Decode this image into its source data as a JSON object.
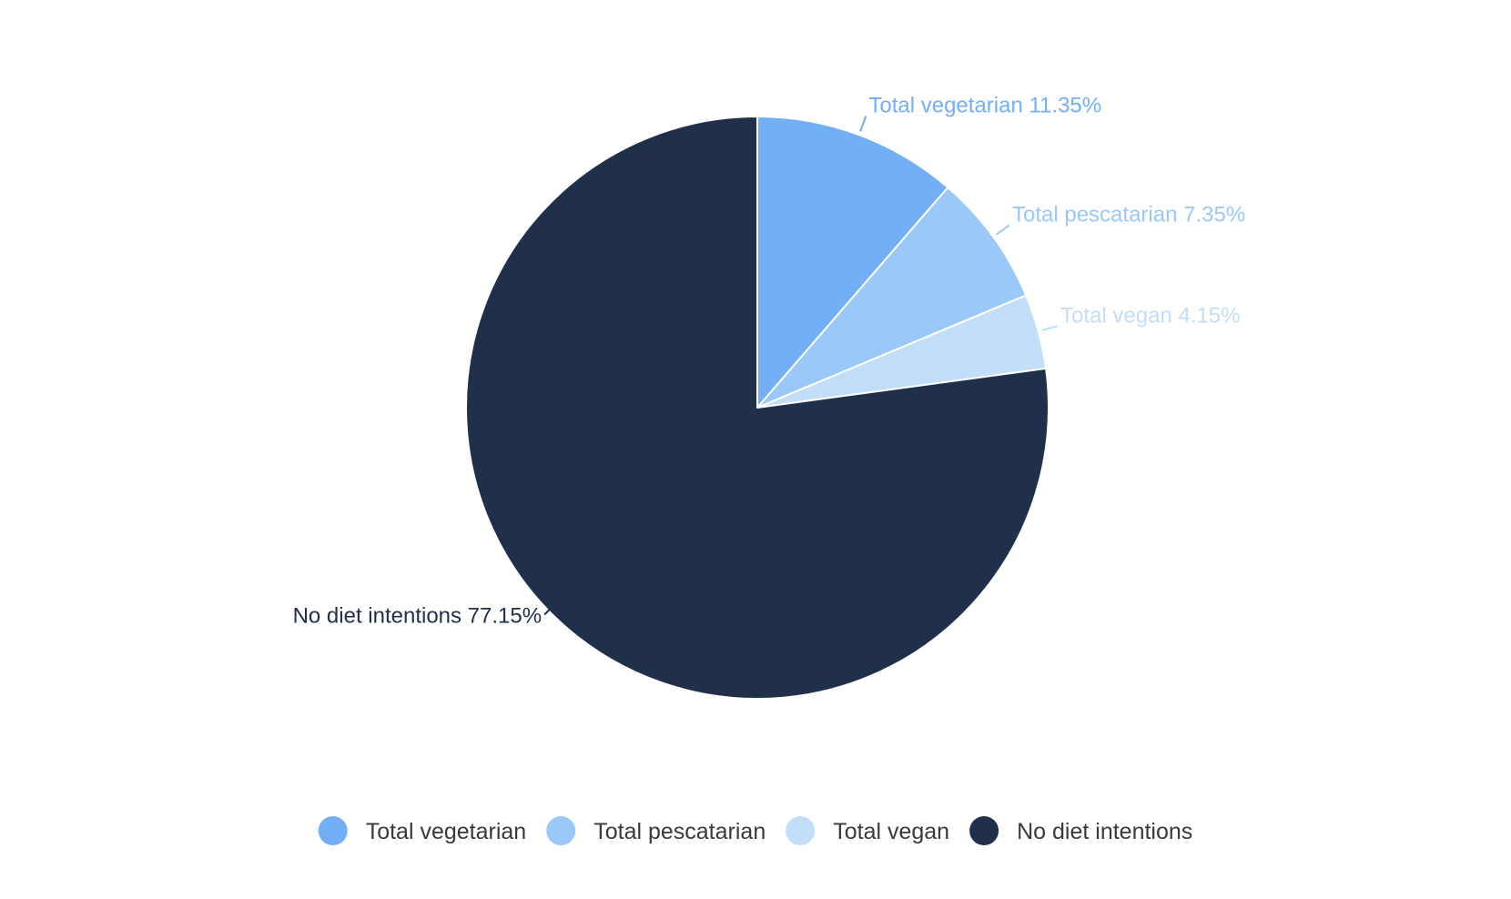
{
  "chart_data": {
    "type": "pie",
    "slices": [
      {
        "name": "Total vegetarian",
        "value": 11.35,
        "label": "Total vegetarian 11.35%",
        "color": "#73aff7"
      },
      {
        "name": "Total pescatarian",
        "value": 7.35,
        "label": "Total pescatarian 7.35%",
        "color": "#9ac8f8"
      },
      {
        "name": "Total vegan",
        "value": 4.15,
        "label": "Total vegan 4.15%",
        "color": "#c2def9"
      },
      {
        "name": "No diet intentions",
        "value": 77.15,
        "label": "No diet intentions 77.15%",
        "color": "#20304b"
      }
    ],
    "start_angle": "12 o'clock",
    "direction": "clockwise",
    "legend_position": "bottom-center",
    "title": ""
  }
}
